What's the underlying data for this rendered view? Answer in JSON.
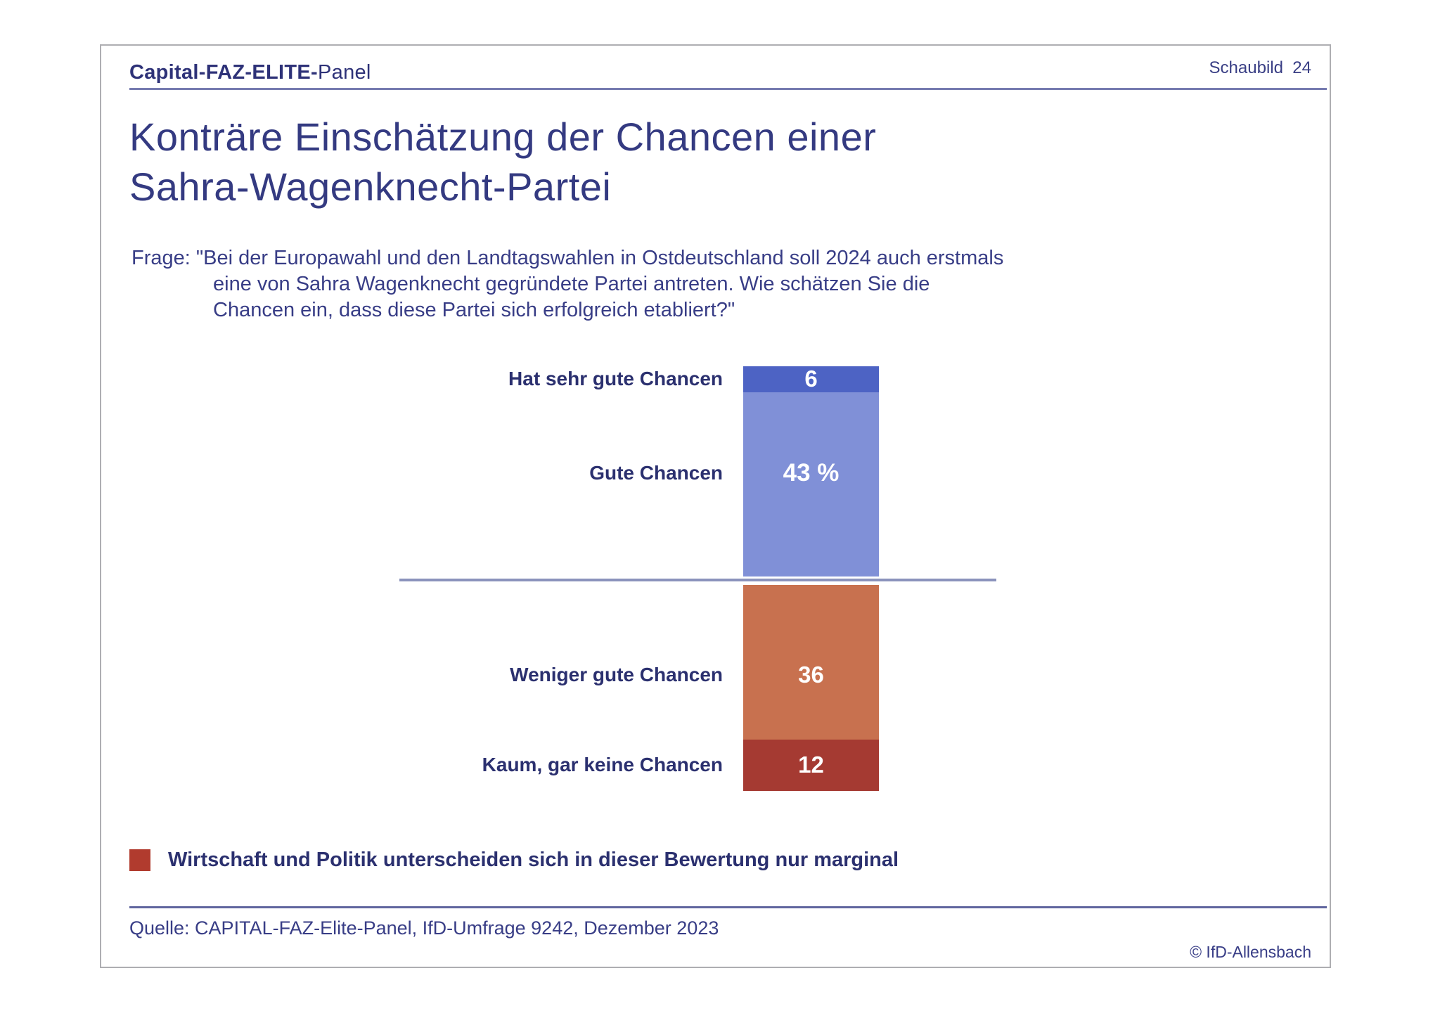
{
  "header": {
    "brand_bold": "Capital-FAZ-ELITE-",
    "brand_regular": "Panel",
    "schaubild": "Schaubild  24"
  },
  "title": {
    "line1": "Konträre Einschätzung der Chancen einer",
    "line2": "Sahra-Wagenknecht-Partei"
  },
  "question": {
    "line1": "Frage: \"Bei der Europawahl und den Landtagswahlen in Ostdeutschland soll 2024 auch erstmals",
    "line2": "eine von Sahra Wagenknecht gegründete Partei antreten. Wie schätzen Sie die",
    "line3": "Chancen ein, dass diese Partei sich erfolgreich etabliert?\""
  },
  "chart_data": {
    "type": "bar",
    "subtype": "single-stacked-vertical-column",
    "unit": "percent",
    "categories": [
      "Hat sehr gute Chancen",
      "Gute Chancen",
      "Weniger gute Chancen",
      "Kaum, gar keine Chancen"
    ],
    "values": [
      6,
      43,
      36,
      12
    ],
    "value_labels": [
      "6",
      "43 %",
      "36",
      "12"
    ],
    "colors": [
      "#4d63c4",
      "#8090d7",
      "#c8714f",
      "#a53a32"
    ],
    "groups": {
      "above_divider": [
        "Hat sehr gute Chancen",
        "Gute Chancen"
      ],
      "below_divider": [
        "Weniger gute Chancen",
        "Kaum, gar keine Chancen"
      ]
    },
    "divider_after_index": 1,
    "legend_position": "labels-left-of-bar",
    "grid": false
  },
  "annotation": {
    "bullet_color": "#b13b2e",
    "text": "Wirtschaft und Politik unterscheiden sich in dieser Bewertung nur marginal"
  },
  "footer": {
    "source": "Quelle: CAPITAL-FAZ-Elite-Panel, IfD-Umfrage 9242, Dezember 2023",
    "copyright": "© IfD-Allensbach"
  },
  "colors": {
    "text_navy": "#2e3278",
    "title_navy": "#343a81",
    "header_rule": "#767bb0",
    "divider_rule": "#8b93bc",
    "footer_rule": "#60659e",
    "frame_border": "#aeaeb2"
  }
}
